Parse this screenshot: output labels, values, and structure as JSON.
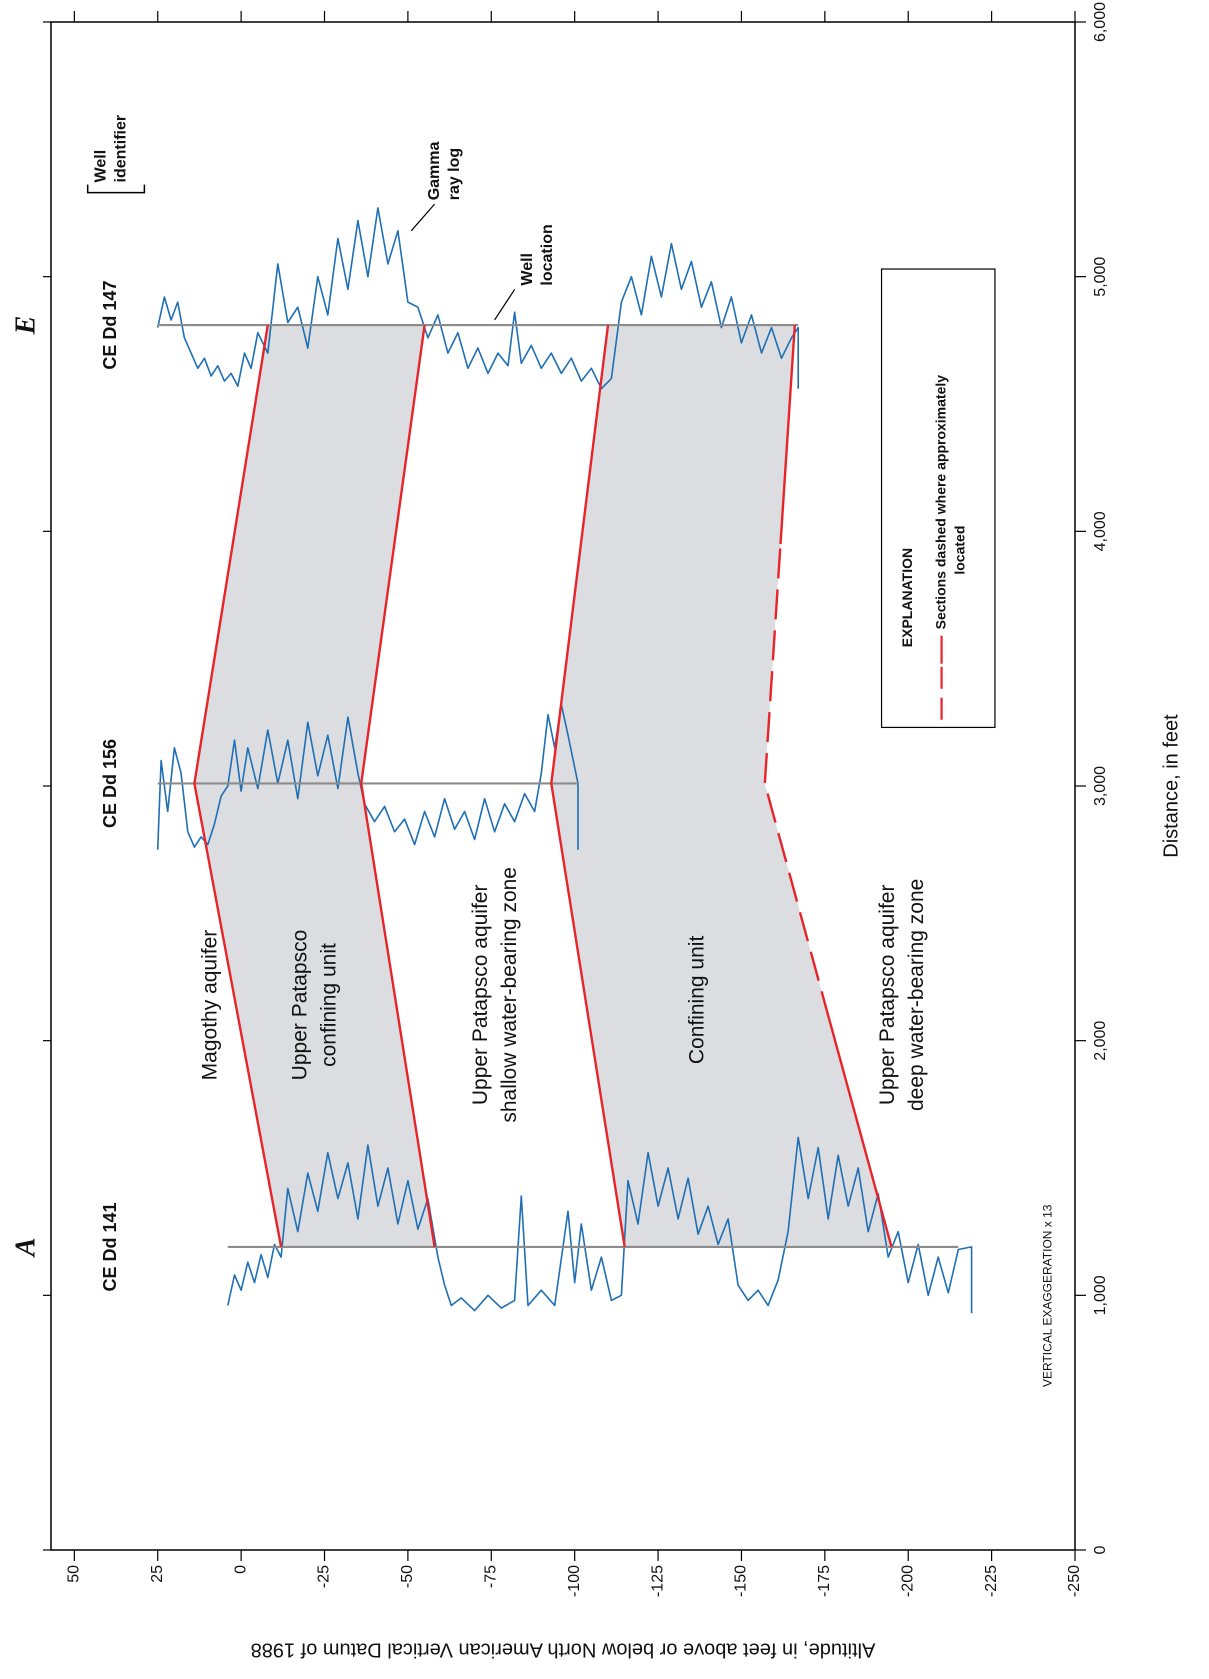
{
  "chart_data": {
    "type": "cross-section",
    "xlabel": "Distance, in feet",
    "ylabel": "Altitude, in feet above or below North American Vertical Datum of 1988",
    "section_ends": [
      "A",
      "E"
    ],
    "xlim": [
      0,
      6000
    ],
    "ylim": [
      -250,
      57
    ],
    "xticks": [
      0,
      {
        "value": 1000,
        "label": "1,000"
      },
      {
        "value": 2000,
        "label": "2,000"
      },
      {
        "value": 3000,
        "label": "3,000"
      },
      {
        "value": 4000,
        "label": "4,000"
      },
      {
        "value": 5000,
        "label": "5,000"
      },
      {
        "value": 6000,
        "label": "6,000"
      }
    ],
    "yticks": [
      50,
      25,
      0,
      -25,
      -50,
      -75,
      -100,
      -125,
      -150,
      -175,
      -200,
      -225,
      -250
    ],
    "log_color": "#1f6fb5",
    "well_color": "#8c8c8c",
    "contact_color": "#e8242b",
    "shade_color": "#dcdde0",
    "wells": [
      {
        "name": "CE Dd 141",
        "distance": 1190,
        "top": 4,
        "bottom": -215,
        "gamma_log": {
          "altitude": [
            4,
            2,
            0,
            -2,
            -4,
            -6,
            -8,
            -10,
            -12,
            -14,
            -17,
            -20,
            -23,
            -26,
            -29,
            -32,
            -35,
            -38,
            -41,
            -44,
            -47,
            -50,
            -53,
            -56,
            -59,
            -61,
            -63,
            -66,
            -70,
            -74,
            -78,
            -82,
            -84,
            -86,
            -90,
            -94,
            -98,
            -100,
            -102,
            -105,
            -108,
            -111,
            -114,
            -116,
            -119,
            -122,
            -125,
            -128,
            -131,
            -134,
            -137,
            -140,
            -143,
            -146,
            -149,
            -152,
            -155,
            -158,
            -161,
            -164,
            -167,
            -170,
            -173,
            -176,
            -179,
            -182,
            -185,
            -188,
            -191,
            -194,
            -197,
            -200,
            -203,
            -206,
            -209,
            -212,
            -215,
            -219,
            -219
          ],
          "distance": [
            960,
            1080,
            1020,
            1130,
            1050,
            1160,
            1070,
            1200,
            1150,
            1420,
            1250,
            1480,
            1330,
            1560,
            1380,
            1520,
            1300,
            1590,
            1350,
            1500,
            1280,
            1450,
            1260,
            1380,
            1150,
            1040,
            960,
            990,
            940,
            1000,
            950,
            980,
            1390,
            960,
            1020,
            960,
            1330,
            1050,
            1280,
            1020,
            1150,
            980,
            1000,
            1450,
            1280,
            1560,
            1350,
            1500,
            1300,
            1460,
            1240,
            1350,
            1200,
            1300,
            1040,
            980,
            1020,
            960,
            1060,
            1250,
            1620,
            1380,
            1580,
            1300,
            1550,
            1350,
            1500,
            1250,
            1400,
            1150,
            1250,
            1050,
            1200,
            1000,
            1150,
            1010,
            1180,
            1190,
            930
          ]
        }
      },
      {
        "name": "CE Dd 156",
        "distance": 3010,
        "top": 25,
        "bottom": -101,
        "gamma_log": {
          "altitude": [
            25,
            24,
            22,
            20,
            18,
            16,
            14,
            12,
            10,
            8,
            6,
            4,
            2,
            0,
            -2,
            -5,
            -8,
            -11,
            -14,
            -17,
            -20,
            -23,
            -26,
            -29,
            -32,
            -35,
            -37,
            -40,
            -43,
            -46,
            -49,
            -52,
            -55,
            -58,
            -61,
            -64,
            -67,
            -70,
            -73,
            -76,
            -79,
            -82,
            -85,
            -88,
            -90,
            -92,
            -94,
            -96,
            -98,
            -101,
            -101
          ],
          "distance": [
            2750,
            3100,
            2900,
            3150,
            3050,
            2820,
            2760,
            2800,
            2770,
            2850,
            2960,
            3000,
            3180,
            2980,
            3150,
            2990,
            3220,
            3010,
            3180,
            2950,
            3250,
            3040,
            3200,
            2990,
            3270,
            3050,
            2930,
            2860,
            2920,
            2820,
            2870,
            2770,
            2900,
            2800,
            2950,
            2830,
            2900,
            2790,
            2950,
            2820,
            2930,
            2860,
            2970,
            2900,
            3050,
            3280,
            3150,
            3320,
            3200,
            3010,
            2750
          ]
        }
      },
      {
        "name": "CE Dd 147",
        "distance": 4810,
        "top": 25,
        "bottom": -167,
        "gamma_log": {
          "altitude": [
            25,
            23,
            21,
            19,
            17,
            15,
            13,
            11,
            9,
            7,
            5,
            3,
            1,
            -1,
            -3,
            -5,
            -8,
            -11,
            -14,
            -17,
            -20,
            -23,
            -26,
            -29,
            -32,
            -35,
            -38,
            -41,
            -44,
            -47,
            -50,
            -53,
            -56,
            -59,
            -62,
            -65,
            -68,
            -71,
            -74,
            -77,
            -80,
            -82,
            -84,
            -87,
            -90,
            -93,
            -96,
            -99,
            -102,
            -105,
            -108,
            -111,
            -114,
            -117,
            -120,
            -123,
            -126,
            -129,
            -132,
            -135,
            -138,
            -141,
            -144,
            -147,
            -150,
            -153,
            -156,
            -159,
            -162,
            -165,
            -167,
            -167
          ],
          "distance": [
            4800,
            4920,
            4830,
            4900,
            4760,
            4700,
            4640,
            4680,
            4610,
            4650,
            4590,
            4620,
            4570,
            4700,
            4640,
            4780,
            4700,
            5050,
            4820,
            4880,
            4720,
            5000,
            4850,
            5150,
            4950,
            5220,
            5000,
            5270,
            5050,
            5180,
            4900,
            4880,
            4760,
            4850,
            4700,
            4780,
            4640,
            4720,
            4620,
            4700,
            4650,
            4860,
            4660,
            4730,
            4640,
            4700,
            4620,
            4680,
            4590,
            4640,
            4560,
            4600,
            4900,
            5000,
            4850,
            5080,
            4920,
            5130,
            4950,
            5060,
            4880,
            4980,
            4800,
            4920,
            4740,
            4850,
            4700,
            4800,
            4680,
            4760,
            4800,
            4560
          ]
        }
      }
    ],
    "contacts": [
      {
        "pieces": [
          {
            "x": [
              1190,
              3010,
              4810
            ],
            "values": [
              -12,
              14,
              -8
            ],
            "dashed": false
          }
        ]
      },
      {
        "pieces": [
          {
            "x": [
              1190,
              3010,
              4810
            ],
            "values": [
              -58,
              -36,
              -55
            ],
            "dashed": false
          }
        ]
      },
      {
        "pieces": [
          {
            "x": [
              1190,
              3010,
              4810
            ],
            "values": [
              -115,
              -93,
              -110
            ],
            "dashed": false
          }
        ]
      },
      {
        "pieces": [
          {
            "x": [
              1190,
              2080
            ],
            "values": [
              -195,
              -176.4
            ],
            "dashed": false
          },
          {
            "x": [
              2080,
              3010,
              3950
            ],
            "values": [
              -176.4,
              -157,
              -161.7
            ],
            "dashed": true
          },
          {
            "x": [
              3950,
              4810
            ],
            "values": [
              -161.7,
              -166
            ],
            "dashed": false
          }
        ]
      }
    ],
    "units": [
      {
        "label": [
          "Magothy aquifer"
        ],
        "shaded": false
      },
      {
        "label": [
          "Upper Patapsco",
          "confining unit"
        ],
        "shaded": true
      },
      {
        "label": [
          "Upper Patapsco aquifer",
          "shallow water-bearing zone"
        ],
        "shaded": false
      },
      {
        "label": [
          "Confining unit"
        ],
        "shaded": true
      },
      {
        "label": [
          "Upper Patapsco aquifer",
          "deep water-bearing zone"
        ],
        "shaded": false
      }
    ],
    "annotations": {
      "well_identifier": [
        "Well",
        "identifier"
      ],
      "gamma_ray_log": [
        "Gamma",
        "ray log"
      ],
      "well_location": [
        "Well",
        "location"
      ],
      "vertical_exaggeration": "VERTICAL EXAGGERATION x 13"
    },
    "explanation": {
      "title": "EXPLANATION",
      "lines": [
        "Sections dashed where approximately",
        "located"
      ]
    }
  }
}
